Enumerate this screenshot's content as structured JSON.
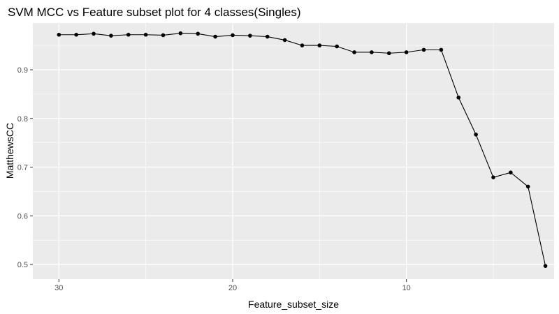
{
  "chart_data": {
    "type": "line",
    "title": "SVM MCC vs Feature subset plot for 4 classes(Singles)",
    "xlabel": "Feature_subset_size",
    "ylabel": "MatthewsCC",
    "x_reversed": true,
    "xlim": [
      1.5,
      31.5
    ],
    "ylim": [
      0.47,
      0.996
    ],
    "x_ticks": [
      30,
      20,
      10
    ],
    "y_ticks": [
      0.5,
      0.6,
      0.7,
      0.8,
      0.9
    ],
    "x_ticks_labels": [
      "30",
      "20",
      "10"
    ],
    "y_ticks_labels": [
      "0.5",
      "0.6",
      "0.7",
      "0.8",
      "0.9"
    ],
    "grid": true,
    "colors": {
      "panel": "#ebebeb",
      "grid": "#ffffff",
      "series": "#000000"
    },
    "series": [
      {
        "x": [
          30,
          29,
          28,
          27,
          26,
          25,
          24,
          23,
          22,
          21,
          20,
          19,
          18,
          17,
          16,
          15,
          14,
          13,
          12,
          11,
          10,
          9,
          8,
          7,
          6,
          5,
          4,
          3,
          2
        ],
        "values": [
          0.972,
          0.972,
          0.974,
          0.97,
          0.972,
          0.972,
          0.971,
          0.975,
          0.974,
          0.968,
          0.971,
          0.97,
          0.968,
          0.961,
          0.95,
          0.95,
          0.948,
          0.936,
          0.936,
          0.934,
          0.936,
          0.941,
          0.941,
          0.843,
          0.767,
          0.679,
          0.689,
          0.66,
          0.497
        ]
      }
    ]
  }
}
